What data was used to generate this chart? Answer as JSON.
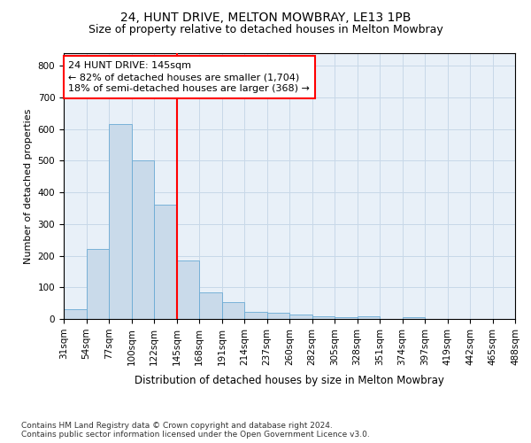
{
  "title": "24, HUNT DRIVE, MELTON MOWBRAY, LE13 1PB",
  "subtitle": "Size of property relative to detached houses in Melton Mowbray",
  "xlabel": "Distribution of detached houses by size in Melton Mowbray",
  "ylabel": "Number of detached properties",
  "bar_values": [
    32,
    220,
    615,
    500,
    360,
    185,
    85,
    52,
    22,
    20,
    14,
    8,
    5,
    8,
    0,
    5,
    0,
    0,
    0,
    0
  ],
  "categories": [
    "31sqm",
    "54sqm",
    "77sqm",
    "100sqm",
    "122sqm",
    "145sqm",
    "168sqm",
    "191sqm",
    "214sqm",
    "237sqm",
    "260sqm",
    "282sqm",
    "305sqm",
    "328sqm",
    "351sqm",
    "374sqm",
    "397sqm",
    "419sqm",
    "442sqm",
    "465sqm",
    "488sqm"
  ],
  "bar_color": "#c9daea",
  "bar_edge_color": "#6aaad4",
  "vline_x": 5,
  "vline_color": "red",
  "annotation_text": "24 HUNT DRIVE: 145sqm\n← 82% of detached houses are smaller (1,704)\n18% of semi-detached houses are larger (368) →",
  "annotation_box_color": "white",
  "annotation_box_edge": "red",
  "ylim": [
    0,
    840
  ],
  "yticks": [
    0,
    100,
    200,
    300,
    400,
    500,
    600,
    700,
    800
  ],
  "grid_color": "#c8d8e8",
  "background_color": "#e8f0f8",
  "footnote": "Contains HM Land Registry data © Crown copyright and database right 2024.\nContains public sector information licensed under the Open Government Licence v3.0.",
  "title_fontsize": 10,
  "subtitle_fontsize": 9,
  "xlabel_fontsize": 8.5,
  "ylabel_fontsize": 8,
  "tick_fontsize": 7.5,
  "annot_fontsize": 8,
  "footnote_fontsize": 6.5
}
